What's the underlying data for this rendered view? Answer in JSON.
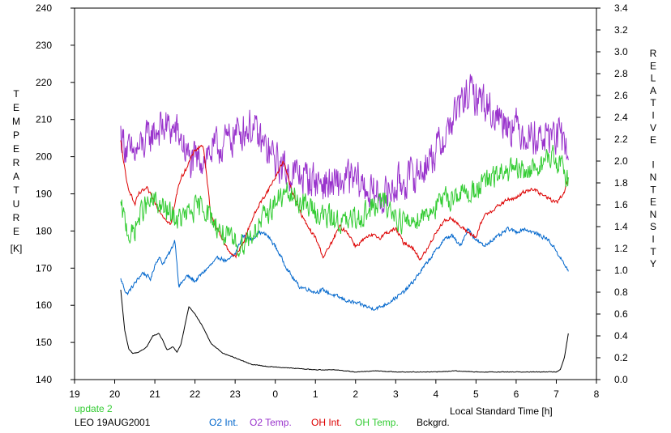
{
  "chart_data": {
    "type": "line",
    "xlabel": "Local Standard Time [h]",
    "ylabel_left": [
      "T",
      "E",
      "M",
      "P",
      "E",
      "R",
      "A",
      "T",
      "U",
      "R",
      "E"
    ],
    "ylabel_left_unit": "[K]",
    "ylabel_right": [
      "R",
      "E",
      "L",
      "A",
      "T",
      "I",
      "V",
      "E",
      "",
      "I",
      "N",
      "T",
      "E",
      "N",
      "S",
      "I",
      "T",
      "Y"
    ],
    "x_ticks": [
      19,
      20,
      21,
      22,
      23,
      24,
      25,
      26,
      27,
      28,
      29,
      30,
      31,
      32
    ],
    "x_tick_labels": [
      "19",
      "20",
      "21",
      "22",
      "23",
      "0",
      "1",
      "2",
      "3",
      "4",
      "5",
      "6",
      "7",
      "8"
    ],
    "xlim": [
      19,
      32
    ],
    "ylim_left": [
      140,
      240
    ],
    "y_ticks_left": [
      "140",
      "150",
      "160",
      "170",
      "180",
      "190",
      "200",
      "210",
      "220",
      "230",
      "240"
    ],
    "ylim_right": [
      0,
      3.4
    ],
    "y_ticks_right": [
      "0.0",
      "0.2",
      "0.4",
      "0.6",
      "0.8",
      "1.0",
      "1.2",
      "1.4",
      "1.6",
      "1.8",
      "2.0",
      "2.2",
      "2.4",
      "2.6",
      "2.8",
      "3.0",
      "3.2",
      "3.4"
    ],
    "footer": {
      "status": "update 2",
      "station_date": "LEO 19AUG2001"
    },
    "series": [
      {
        "name": "O2 Int.",
        "color": "#0066cc",
        "axis": "right",
        "noise": 0.025,
        "x": [
          20.15,
          20.3,
          20.5,
          20.7,
          20.9,
          21.0,
          21.1,
          21.2,
          21.4,
          21.5,
          21.6,
          21.8,
          22.0,
          22.2,
          22.4,
          22.6,
          22.8,
          23.0,
          23.2,
          23.4,
          23.6,
          23.8,
          24.0,
          24.2,
          24.4,
          24.6,
          24.8,
          25.0,
          25.2,
          25.4,
          25.6,
          25.8,
          26.0,
          26.2,
          26.4,
          26.6,
          26.8,
          27.0,
          27.2,
          27.4,
          27.6,
          27.8,
          28.0,
          28.2,
          28.4,
          28.6,
          28.8,
          29.0,
          29.2,
          29.4,
          29.6,
          29.8,
          30.0,
          30.2,
          30.4,
          30.6,
          30.8,
          31.0,
          31.2,
          31.3
        ],
        "y": [
          0.92,
          0.78,
          0.88,
          0.98,
          0.92,
          1.05,
          1.12,
          1.06,
          1.18,
          1.28,
          0.85,
          0.95,
          0.9,
          0.98,
          1.05,
          1.12,
          1.08,
          1.15,
          1.32,
          1.28,
          1.35,
          1.32,
          1.22,
          1.08,
          0.95,
          0.85,
          0.83,
          0.8,
          0.82,
          0.78,
          0.75,
          0.72,
          0.7,
          0.68,
          0.65,
          0.66,
          0.7,
          0.75,
          0.8,
          0.88,
          0.98,
          1.08,
          1.18,
          1.28,
          1.32,
          1.22,
          1.38,
          1.28,
          1.22,
          1.28,
          1.32,
          1.38,
          1.35,
          1.38,
          1.35,
          1.32,
          1.28,
          1.18,
          1.05,
          1.0
        ]
      },
      {
        "name": "O2 Temp.",
        "color": "#9933cc",
        "axis": "left",
        "noise": 7.0,
        "x": [
          20.15,
          20.4,
          20.7,
          21.0,
          21.3,
          21.6,
          21.9,
          22.2,
          22.5,
          22.8,
          23.1,
          23.4,
          23.7,
          24.0,
          24.3,
          24.6,
          24.9,
          25.2,
          25.5,
          25.8,
          26.1,
          26.4,
          26.7,
          27.0,
          27.3,
          27.6,
          27.9,
          28.2,
          28.5,
          28.8,
          29.1,
          29.4,
          29.7,
          30.0,
          30.3,
          30.6,
          30.9,
          31.2,
          31.3
        ],
        "y": [
          206,
          200,
          203,
          207,
          208,
          206,
          198,
          200,
          202,
          204,
          207,
          208,
          203,
          199,
          196,
          195,
          194,
          193,
          192,
          194,
          193,
          190,
          189,
          192,
          194,
          196,
          200,
          205,
          212,
          217,
          216,
          212,
          210,
          208,
          206,
          205,
          206,
          204,
          201
        ]
      },
      {
        "name": "OH Int.",
        "color": "#dd0000",
        "axis": "right",
        "noise": 0.025,
        "x": [
          20.15,
          20.3,
          20.5,
          20.6,
          20.8,
          21.0,
          21.2,
          21.4,
          21.6,
          21.8,
          22.0,
          22.2,
          22.4,
          22.6,
          22.8,
          23.0,
          23.2,
          23.4,
          23.6,
          23.8,
          24.0,
          24.2,
          24.4,
          24.6,
          24.8,
          25.0,
          25.2,
          25.4,
          25.6,
          25.8,
          26.0,
          26.2,
          26.4,
          26.6,
          26.8,
          27.0,
          27.2,
          27.4,
          27.6,
          27.8,
          28.0,
          28.2,
          28.4,
          28.6,
          28.8,
          29.0,
          29.2,
          29.4,
          29.6,
          29.8,
          30.0,
          30.2,
          30.4,
          30.6,
          30.8,
          31.0,
          31.2,
          31.3
        ],
        "y": [
          2.18,
          1.8,
          1.6,
          1.7,
          1.75,
          1.62,
          1.5,
          1.42,
          1.8,
          1.95,
          2.1,
          2.15,
          1.5,
          1.35,
          1.2,
          1.12,
          1.25,
          1.45,
          1.6,
          1.72,
          1.85,
          2.0,
          1.75,
          1.55,
          1.4,
          1.3,
          1.12,
          1.25,
          1.4,
          1.35,
          1.22,
          1.28,
          1.32,
          1.3,
          1.35,
          1.38,
          1.25,
          1.22,
          1.1,
          1.2,
          1.35,
          1.45,
          1.48,
          1.4,
          1.35,
          1.3,
          1.5,
          1.55,
          1.6,
          1.65,
          1.66,
          1.72,
          1.75,
          1.7,
          1.66,
          1.62,
          1.7,
          1.85
        ]
      },
      {
        "name": "OH Temp.",
        "color": "#33cc33",
        "axis": "left",
        "noise": 4.5,
        "x": [
          20.15,
          20.4,
          20.7,
          21.0,
          21.3,
          21.6,
          21.9,
          22.2,
          22.5,
          22.8,
          23.1,
          23.4,
          23.7,
          24.0,
          24.3,
          24.6,
          24.9,
          25.2,
          25.5,
          25.8,
          26.1,
          26.4,
          26.7,
          27.0,
          27.3,
          27.6,
          27.9,
          28.2,
          28.5,
          28.8,
          29.1,
          29.4,
          29.7,
          30.0,
          30.3,
          30.6,
          30.9,
          31.2,
          31.3
        ],
        "y": [
          186,
          178,
          186,
          188,
          185,
          183,
          185,
          187,
          182,
          178,
          176,
          179,
          183,
          188,
          190,
          188,
          186,
          184,
          183,
          182,
          184,
          186,
          188,
          184,
          182,
          184,
          186,
          188,
          190,
          190,
          192,
          194,
          196,
          196,
          196,
          198,
          200,
          196,
          194
        ]
      },
      {
        "name": "Bckgrd.",
        "color": "#000000",
        "axis": "right",
        "noise": 0.004,
        "x": [
          20.15,
          20.25,
          20.35,
          20.45,
          20.6,
          20.8,
          20.95,
          21.1,
          21.2,
          21.3,
          21.45,
          21.55,
          21.65,
          21.75,
          21.85,
          22.0,
          22.2,
          22.4,
          22.7,
          23.0,
          23.4,
          23.8,
          24.2,
          24.6,
          25.0,
          25.5,
          26.0,
          26.5,
          27.0,
          27.5,
          28.0,
          28.5,
          29.0,
          29.5,
          30.0,
          30.5,
          31.0,
          31.1,
          31.2,
          31.3
        ],
        "y": [
          0.82,
          0.45,
          0.28,
          0.24,
          0.25,
          0.3,
          0.4,
          0.42,
          0.36,
          0.27,
          0.3,
          0.25,
          0.32,
          0.5,
          0.67,
          0.6,
          0.48,
          0.33,
          0.24,
          0.2,
          0.14,
          0.12,
          0.11,
          0.1,
          0.09,
          0.09,
          0.07,
          0.08,
          0.07,
          0.07,
          0.07,
          0.08,
          0.07,
          0.07,
          0.07,
          0.07,
          0.07,
          0.09,
          0.2,
          0.42
        ]
      }
    ]
  }
}
